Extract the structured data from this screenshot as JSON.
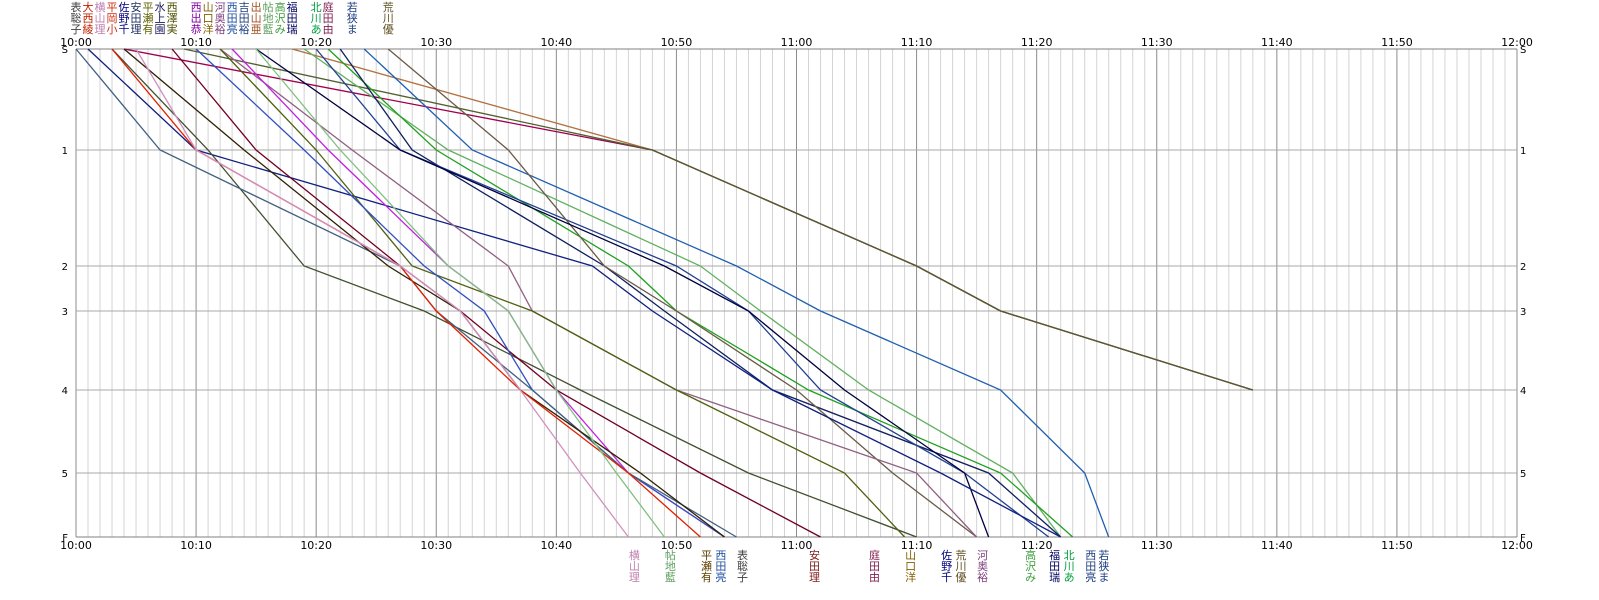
{
  "chart_data": {
    "type": "line",
    "x_ticks": [
      "10:00",
      "10:10",
      "10:20",
      "10:30",
      "10:40",
      "10:50",
      "11:00",
      "11:10",
      "11:20",
      "11:30",
      "11:40",
      "11:50",
      "12:00"
    ],
    "xlim": [
      0,
      120
    ],
    "y_stations": [
      "S",
      "1",
      "2",
      "3",
      "4",
      "5",
      "F"
    ],
    "grid": true,
    "top_name_groups": [
      {
        "minute": 0,
        "color": "#404040",
        "chars": [
          "表",
          "聡",
          "子"
        ]
      },
      {
        "minute": 1,
        "color": "#c02000",
        "chars": [
          "大",
          "西",
          "綾"
        ]
      },
      {
        "minute": 2,
        "color": "#c080b0",
        "chars": [
          "横",
          "山",
          "理"
        ]
      },
      {
        "minute": 3,
        "color": "#d03010",
        "chars": [
          "平",
          "岡",
          "小"
        ]
      },
      {
        "minute": 4,
        "color": "#000080",
        "chars": [
          "佐",
          "野",
          "千"
        ]
      },
      {
        "minute": 5,
        "color": "#203060",
        "chars": [
          "安",
          "田",
          "理"
        ]
      },
      {
        "minute": 6,
        "color": "#606000",
        "chars": [
          "平",
          "瀬",
          "有"
        ]
      },
      {
        "minute": 7,
        "color": "#202060",
        "chars": [
          "水",
          "上",
          "園"
        ]
      },
      {
        "minute": 8,
        "color": "#505000",
        "chars": [
          "西",
          "澤",
          "実"
        ]
      },
      {
        "minute": 10,
        "color": "#8000a0",
        "chars": [
          "西",
          "出",
          "恭"
        ]
      },
      {
        "minute": 11,
        "color": "#806000",
        "chars": [
          "山",
          "口",
          "洋"
        ]
      },
      {
        "minute": 12,
        "color": "#804080",
        "chars": [
          "河",
          "奥",
          "裕"
        ]
      },
      {
        "minute": 13,
        "color": "#2050a0",
        "chars": [
          "西",
          "田",
          "亮"
        ]
      },
      {
        "minute": 14,
        "color": "#204080",
        "chars": [
          "吉",
          "田",
          "裕"
        ]
      },
      {
        "minute": 15,
        "color": "#a05020",
        "chars": [
          "出",
          "山",
          "亜"
        ]
      },
      {
        "minute": 16,
        "color": "#60a060",
        "chars": [
          "帖",
          "地",
          "藍"
        ]
      },
      {
        "minute": 17,
        "color": "#40a040",
        "chars": [
          "高",
          "沢",
          "み"
        ]
      },
      {
        "minute": 18,
        "color": "#000060",
        "chars": [
          "福",
          "田",
          "瑞"
        ]
      },
      {
        "minute": 20,
        "color": "#00a040",
        "chars": [
          "北",
          "川",
          "あ"
        ]
      },
      {
        "minute": 21,
        "color": "#802050",
        "chars": [
          "庭",
          "田",
          "由"
        ]
      },
      {
        "minute": 23,
        "color": "#204080",
        "chars": [
          "若",
          "狭",
          "ま"
        ]
      },
      {
        "minute": 26,
        "color": "#605020",
        "chars": [
          "荒",
          "川",
          "優"
        ]
      }
    ],
    "bottom_name_groups": [
      {
        "minute": 46.5,
        "color": "#c080b0",
        "chars": [
          "横",
          "山",
          "理"
        ]
      },
      {
        "minute": 49.5,
        "color": "#60a060",
        "chars": [
          "帖",
          "地",
          "藍"
        ]
      },
      {
        "minute": 52.5,
        "color": "#604000",
        "chars": [
          "平",
          "瀬",
          "有"
        ]
      },
      {
        "minute": 53.7,
        "color": "#2050a0",
        "chars": [
          "西",
          "田",
          "亮"
        ]
      },
      {
        "minute": 55.5,
        "color": "#404040",
        "chars": [
          "表",
          "聡",
          "子"
        ]
      },
      {
        "minute": 61.5,
        "color": "#802020",
        "chars": [
          "安",
          "田",
          "理"
        ]
      },
      {
        "minute": 66.5,
        "color": "#802050",
        "chars": [
          "庭",
          "田",
          "由"
        ]
      },
      {
        "minute": 69.5,
        "color": "#806000",
        "chars": [
          "山",
          "口",
          "洋"
        ]
      },
      {
        "minute": 72.5,
        "color": "#000080",
        "chars": [
          "佐",
          "野",
          "千"
        ]
      },
      {
        "minute": 73.7,
        "color": "#605020",
        "chars": [
          "荒",
          "川",
          "優"
        ]
      },
      {
        "minute": 75.5,
        "color": "#804080",
        "chars": [
          "河",
          "奥",
          "裕"
        ]
      },
      {
        "minute": 79.5,
        "color": "#40a040",
        "chars": [
          "高",
          "沢",
          "み"
        ]
      },
      {
        "minute": 81.5,
        "color": "#000060",
        "chars": [
          "福",
          "田",
          "瑞"
        ]
      },
      {
        "minute": 82.7,
        "color": "#00a040",
        "chars": [
          "北",
          "川",
          "あ"
        ]
      },
      {
        "minute": 84.5,
        "color": "#204080",
        "chars": [
          "西",
          "田",
          "亮"
        ]
      },
      {
        "minute": 85.6,
        "color": "#204080",
        "chars": [
          "若",
          "狭",
          "ま"
        ]
      }
    ],
    "series": [
      {
        "color": "#b07040",
        "points": [
          [
            18,
            0
          ],
          [
            48,
            1
          ],
          [
            70,
            2
          ],
          [
            77,
            3
          ],
          [
            98,
            4
          ]
        ]
      },
      {
        "color": "#a00050",
        "points": [
          [
            4,
            0
          ],
          [
            48,
            1
          ],
          [
            70,
            2
          ],
          [
            77,
            3
          ],
          [
            98,
            4
          ]
        ]
      },
      {
        "color": "#506030",
        "points": [
          [
            9,
            0
          ],
          [
            48,
            1
          ],
          [
            70,
            2
          ],
          [
            77,
            3
          ],
          [
            98,
            4
          ]
        ]
      },
      {
        "color": "#2060b0",
        "points": [
          [
            24,
            0
          ],
          [
            33,
            1
          ],
          [
            55,
            2
          ],
          [
            62,
            3
          ],
          [
            77,
            4
          ],
          [
            84,
            5
          ],
          [
            86,
            6
          ]
        ]
      },
      {
        "color": "#60b060",
        "points": [
          [
            19,
            0
          ],
          [
            31,
            1
          ],
          [
            52,
            2
          ],
          [
            57,
            3
          ],
          [
            66,
            4
          ],
          [
            78,
            5
          ],
          [
            82,
            6
          ]
        ]
      },
      {
        "color": "#20a020",
        "points": [
          [
            21,
            0
          ],
          [
            30,
            1
          ],
          [
            46,
            2
          ],
          [
            50,
            3
          ],
          [
            61,
            4
          ],
          [
            77,
            5
          ],
          [
            83,
            6
          ]
        ]
      },
      {
        "color": "#102060",
        "points": [
          [
            22,
            0
          ],
          [
            28,
            1
          ],
          [
            44,
            2
          ],
          [
            49,
            3
          ],
          [
            58,
            4
          ],
          [
            76,
            5
          ],
          [
            82,
            6
          ]
        ]
      },
      {
        "color": "#204090",
        "points": [
          [
            20,
            0
          ],
          [
            27,
            1
          ],
          [
            50,
            2
          ],
          [
            56,
            3
          ],
          [
            62,
            4
          ],
          [
            74,
            5
          ],
          [
            81,
            6
          ]
        ]
      },
      {
        "color": "#6a5a48",
        "points": [
          [
            26,
            0
          ],
          [
            36,
            1
          ],
          [
            44,
            2
          ],
          [
            50,
            3
          ],
          [
            60,
            4
          ],
          [
            68,
            5
          ],
          [
            75,
            6
          ]
        ]
      },
      {
        "color": "#000040",
        "points": [
          [
            15,
            0
          ],
          [
            27,
            1
          ],
          [
            49,
            2
          ],
          [
            56,
            3
          ],
          [
            64,
            4
          ],
          [
            74,
            5
          ],
          [
            76,
            6
          ]
        ]
      },
      {
        "color": "#102080",
        "points": [
          [
            1,
            0
          ],
          [
            10,
            1
          ],
          [
            43,
            2
          ],
          [
            48,
            3
          ],
          [
            58,
            4
          ],
          [
            72,
            5
          ],
          [
            82,
            6
          ]
        ]
      },
      {
        "color": "#906080",
        "points": [
          [
            12,
            0
          ],
          [
            23,
            1
          ],
          [
            36,
            2
          ],
          [
            38,
            3
          ],
          [
            50,
            4
          ],
          [
            70,
            5
          ],
          [
            75,
            6
          ]
        ]
      },
      {
        "color": "#405030",
        "points": [
          [
            3,
            0
          ],
          [
            11,
            1
          ],
          [
            19,
            2
          ],
          [
            29,
            3
          ],
          [
            42,
            4
          ],
          [
            56,
            5
          ],
          [
            70,
            6
          ]
        ]
      },
      {
        "color": "#506010",
        "points": [
          [
            12,
            0
          ],
          [
            20,
            1
          ],
          [
            28,
            2
          ],
          [
            38,
            3
          ],
          [
            50,
            4
          ],
          [
            64,
            5
          ],
          [
            69,
            6
          ]
        ]
      },
      {
        "color": "#700020",
        "points": [
          [
            8,
            0
          ],
          [
            15,
            1
          ],
          [
            27,
            2
          ],
          [
            32,
            3
          ],
          [
            40,
            4
          ],
          [
            52,
            5
          ],
          [
            62,
            6
          ]
        ]
      },
      {
        "color": "#c020e0",
        "points": [
          [
            13,
            0
          ],
          [
            21,
            1
          ],
          [
            31,
            2
          ],
          [
            36,
            3
          ],
          [
            40,
            4
          ],
          [
            46,
            5
          ],
          [
            54,
            6
          ]
        ]
      },
      {
        "color": "#3050c0",
        "points": [
          [
            10,
            0
          ],
          [
            19,
            1
          ],
          [
            29,
            2
          ],
          [
            34,
            3
          ],
          [
            38,
            4
          ],
          [
            46,
            5
          ],
          [
            54,
            6
          ]
        ]
      },
      {
        "color": "#406080",
        "points": [
          [
            0,
            0
          ],
          [
            7,
            1
          ],
          [
            27,
            2
          ],
          [
            30,
            3
          ],
          [
            38,
            4
          ],
          [
            46,
            5
          ],
          [
            55,
            6
          ]
        ]
      },
      {
        "color": "#302000",
        "points": [
          [
            4,
            0
          ],
          [
            14,
            1
          ],
          [
            26,
            2
          ],
          [
            32,
            3
          ],
          [
            37,
            4
          ],
          [
            47,
            5
          ],
          [
            54,
            6
          ]
        ]
      },
      {
        "color": "#e02000",
        "points": [
          [
            3,
            0
          ],
          [
            10,
            1
          ],
          [
            27,
            2
          ],
          [
            30,
            3
          ],
          [
            37,
            4
          ],
          [
            46,
            5
          ],
          [
            52,
            6
          ]
        ]
      },
      {
        "color": "#80c080",
        "points": [
          [
            15,
            0
          ],
          [
            22,
            1
          ],
          [
            31,
            2
          ],
          [
            36,
            3
          ],
          [
            40,
            4
          ],
          [
            45,
            5
          ],
          [
            49,
            6
          ]
        ]
      },
      {
        "color": "#d090c0",
        "points": [
          [
            5,
            0
          ],
          [
            10,
            1
          ],
          [
            27,
            2
          ],
          [
            32,
            3
          ],
          [
            37,
            4
          ],
          [
            42,
            5
          ],
          [
            46,
            6
          ]
        ]
      }
    ]
  }
}
